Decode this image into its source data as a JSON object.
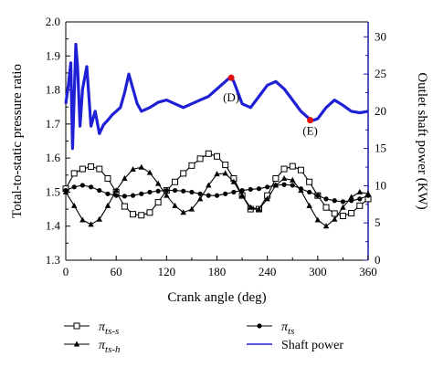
{
  "chart_data": {
    "type": "line",
    "xlabel": "Crank angle (deg)",
    "ylabel_left": "Total-to-static pressure ratio",
    "ylabel_right": "Outlet shaft power (KW)",
    "xlim": [
      0,
      360
    ],
    "ylim_left": [
      1.3,
      2.0
    ],
    "ylim_right": [
      0,
      32
    ],
    "x_ticks": [
      "0",
      "60",
      "120",
      "180",
      "240",
      "300",
      "360"
    ],
    "y_left_ticks": [
      "1.3",
      "1.4",
      "1.5",
      "1.6",
      "1.7",
      "1.8",
      "1.9",
      "2.0"
    ],
    "y_right_ticks": [
      "0",
      "5",
      "10",
      "15",
      "20",
      "25",
      "30"
    ],
    "grid": false,
    "legend_position": "below",
    "right_axis_color": "#1a1aa6",
    "annotations": [
      {
        "label": "(D)",
        "x": 197,
        "y_right": 24.5
      },
      {
        "label": "(E)",
        "x": 291,
        "y_right": 18.8
      }
    ],
    "series": [
      {
        "name": "π_ts-s",
        "axis": "left",
        "marker": "open-square",
        "color": "#000000",
        "x": [
          0,
          10,
          20,
          30,
          40,
          50,
          60,
          70,
          80,
          90,
          100,
          110,
          120,
          130,
          140,
          150,
          160,
          170,
          180,
          190,
          200,
          210,
          220,
          230,
          240,
          250,
          260,
          270,
          280,
          290,
          300,
          310,
          320,
          330,
          340,
          350,
          360
        ],
        "y": [
          1.51,
          1.555,
          1.568,
          1.575,
          1.568,
          1.54,
          1.5,
          1.458,
          1.435,
          1.432,
          1.44,
          1.47,
          1.505,
          1.53,
          1.555,
          1.578,
          1.598,
          1.613,
          1.605,
          1.58,
          1.54,
          1.49,
          1.45,
          1.45,
          1.49,
          1.54,
          1.568,
          1.576,
          1.565,
          1.53,
          1.49,
          1.455,
          1.437,
          1.43,
          1.438,
          1.46,
          1.48
        ]
      },
      {
        "name": "π_ts-h",
        "axis": "left",
        "marker": "filled-triangle",
        "color": "#000000",
        "x": [
          0,
          10,
          20,
          30,
          40,
          50,
          60,
          70,
          80,
          90,
          100,
          110,
          120,
          130,
          140,
          150,
          160,
          170,
          180,
          190,
          200,
          210,
          220,
          230,
          240,
          250,
          260,
          270,
          280,
          290,
          300,
          310,
          320,
          330,
          340,
          350,
          360
        ],
        "y": [
          1.5,
          1.46,
          1.418,
          1.405,
          1.42,
          1.46,
          1.505,
          1.54,
          1.567,
          1.573,
          1.557,
          1.525,
          1.49,
          1.46,
          1.44,
          1.45,
          1.48,
          1.52,
          1.553,
          1.555,
          1.53,
          1.49,
          1.455,
          1.45,
          1.48,
          1.52,
          1.54,
          1.535,
          1.505,
          1.46,
          1.418,
          1.4,
          1.42,
          1.455,
          1.485,
          1.5,
          1.495
        ]
      },
      {
        "name": "π_ts",
        "axis": "left",
        "marker": "filled-circle",
        "color": "#000000",
        "x": [
          0,
          10,
          20,
          30,
          40,
          50,
          60,
          70,
          80,
          90,
          100,
          110,
          120,
          130,
          140,
          150,
          160,
          170,
          180,
          190,
          200,
          210,
          220,
          230,
          240,
          250,
          260,
          270,
          280,
          290,
          300,
          310,
          320,
          330,
          340,
          350,
          360
        ],
        "y": [
          1.505,
          1.515,
          1.52,
          1.515,
          1.505,
          1.495,
          1.49,
          1.488,
          1.49,
          1.495,
          1.5,
          1.503,
          1.505,
          1.505,
          1.503,
          1.5,
          1.495,
          1.49,
          1.49,
          1.495,
          1.5,
          1.505,
          1.508,
          1.51,
          1.515,
          1.52,
          1.522,
          1.52,
          1.51,
          1.5,
          1.49,
          1.48,
          1.475,
          1.472,
          1.475,
          1.48,
          1.49
        ]
      },
      {
        "name": "Shaft power",
        "axis": "right",
        "marker": "none",
        "color": "#1f1fd6",
        "x": [
          0,
          3,
          6,
          8,
          10,
          12,
          14,
          17,
          20,
          25,
          30,
          35,
          40,
          45,
          50,
          55,
          60,
          65,
          70,
          75,
          80,
          85,
          90,
          100,
          110,
          120,
          130,
          140,
          150,
          160,
          170,
          180,
          190,
          195,
          197,
          200,
          205,
          210,
          220,
          230,
          240,
          250,
          260,
          270,
          280,
          290,
          295,
          300,
          310,
          320,
          330,
          340,
          350,
          360
        ],
        "y": [
          21.0,
          23.5,
          26.5,
          15.0,
          22.0,
          29.0,
          26.0,
          18.0,
          23.0,
          26.0,
          18.0,
          20.0,
          17.0,
          18.2,
          18.8,
          19.5,
          20.0,
          20.5,
          22.5,
          25.0,
          23.0,
          21.0,
          20.0,
          20.5,
          21.2,
          21.5,
          21.0,
          20.5,
          21.0,
          21.5,
          22.0,
          23.0,
          24.0,
          24.5,
          24.5,
          24.0,
          22.5,
          21.0,
          20.5,
          22.0,
          23.5,
          24.0,
          23.0,
          21.5,
          20.0,
          19.0,
          18.8,
          19.0,
          20.5,
          21.5,
          20.8,
          20.0,
          19.8,
          20.0
        ]
      }
    ],
    "legend": [
      {
        "text": "π",
        "sub": "ts-s",
        "marker": "open-square"
      },
      {
        "text": "π",
        "sub": "ts",
        "marker": "filled-circle"
      },
      {
        "text": "π",
        "sub": "ts-h",
        "marker": "filled-triangle"
      },
      {
        "text": "Shaft power",
        "sub": "",
        "marker": "line"
      }
    ]
  }
}
